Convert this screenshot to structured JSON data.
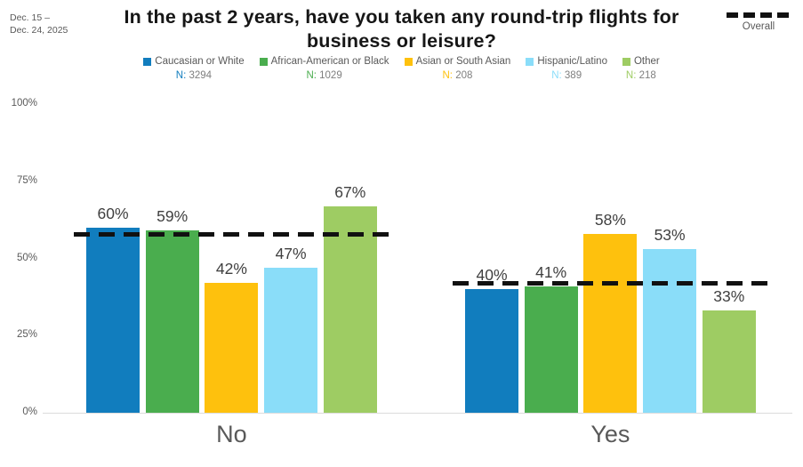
{
  "header": {
    "date_range_line1": "Dec. 15 –",
    "date_range_line2": "Dec. 24, 2025",
    "title": "In the past 2 years, have you taken any round-trip flights for business or leisure?",
    "overall_legend_label": "Overall"
  },
  "chart_data": {
    "type": "bar",
    "title": "In the past 2 years, have you taken any round-trip flights for business or leisure?",
    "categories": [
      "No",
      "Yes"
    ],
    "series": [
      {
        "name": "Caucasian or White",
        "n": "3294",
        "color": "#117DBE",
        "values": [
          60,
          40
        ]
      },
      {
        "name": "African-American or Black",
        "n": "1029",
        "color": "#4AAD4E",
        "values": [
          59,
          41
        ]
      },
      {
        "name": "Asian or South Asian",
        "n": "208",
        "color": "#FEC10D",
        "values": [
          42,
          58
        ]
      },
      {
        "name": "Hispanic/Latino",
        "n": "389",
        "color": "#8ADDF9",
        "values": [
          47,
          53
        ]
      },
      {
        "name": "Other",
        "n": "218",
        "color": "#9ECC63",
        "values": [
          67,
          33
        ]
      }
    ],
    "overall": {
      "label": "Overall",
      "values": [
        58,
        42
      ]
    },
    "legend_n_prefix": "N:",
    "value_suffix": "%",
    "yticks": [
      "0%",
      "25%",
      "50%",
      "75%",
      "100%"
    ],
    "ylim": [
      0,
      100
    ],
    "legend_position": "top",
    "grid": false
  }
}
